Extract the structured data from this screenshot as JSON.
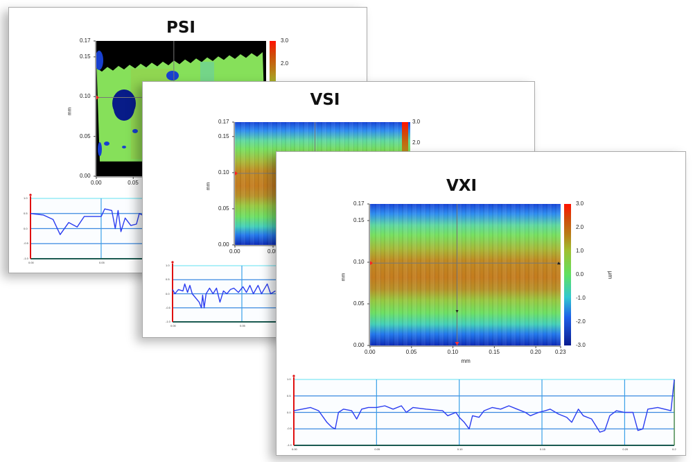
{
  "chart_data": [
    {
      "type": "heatmap",
      "title": "PSI",
      "heatmap": {
        "ylabel": "mm",
        "y_ticks": [
          "0.00",
          "0.05",
          "0.10",
          "0.15",
          "0.17"
        ],
        "x_ticks": [
          "0.00",
          "0.05"
        ],
        "ylim": [
          0,
          0.17
        ],
        "xlim": [
          0,
          0.23
        ],
        "colorbar_ticks": [
          "3.0",
          "2.0"
        ],
        "colorbar_range": [
          -3,
          3
        ]
      },
      "profile": {
        "type": "line",
        "y_ticks": [
          "1.0",
          "0.5",
          "0.0",
          "-0.5",
          "-1.0"
        ],
        "x_ticks": [
          "0.00",
          "0.05"
        ],
        "ylim": [
          -1,
          1
        ],
        "xlim": [
          0,
          0.23
        ],
        "x": [
          0,
          0.009,
          0.016,
          0.021,
          0.027,
          0.033,
          0.038,
          0.05,
          0.0525,
          0.0575,
          0.06,
          0.062,
          0.064,
          0.067,
          0.071,
          0.075,
          0.077,
          0.079
        ],
        "y": [
          0.5,
          0.45,
          0.3,
          -0.2,
          0.2,
          0.05,
          0.4,
          0.4,
          0.65,
          0.6,
          0.0,
          0.6,
          -0.1,
          0.35,
          0.1,
          0.15,
          0.5,
          0.45
        ],
        "color": "#2a3cf0"
      }
    },
    {
      "type": "heatmap",
      "title": "VSI",
      "heatmap": {
        "ylabel": "mm",
        "y_ticks": [
          "0.00",
          "0.05",
          "0.10",
          "0.15",
          "0.17"
        ],
        "x_ticks": [
          "0.00",
          "0.05"
        ],
        "ylim": [
          0,
          0.17
        ],
        "xlim": [
          0,
          0.23
        ],
        "colorbar_ticks": [
          "3.0",
          "2.0"
        ],
        "colorbar_range": [
          -3,
          3
        ]
      },
      "profile": {
        "type": "line",
        "y_ticks": [
          "1.0",
          "0.5",
          "0.0",
          "-0.5",
          "-1.0"
        ],
        "x_ticks": [
          "0.00",
          "0.05"
        ],
        "ylim": [
          -1,
          1
        ],
        "xlim": [
          0,
          0.23
        ],
        "x": [
          0,
          0.0017,
          0.0042,
          0.0075,
          0.0088,
          0.0108,
          0.0125,
          0.0142,
          0.0192,
          0.0208,
          0.0217,
          0.0228,
          0.0242,
          0.0267,
          0.0292,
          0.0317,
          0.0342,
          0.0367,
          0.0392,
          0.0417,
          0.0442,
          0.0475,
          0.0508,
          0.0533,
          0.0558,
          0.0583,
          0.0617,
          0.0642,
          0.0683,
          0.0708,
          0.0742
        ],
        "y": [
          0.15,
          0.0,
          0.15,
          0.1,
          0.35,
          0.05,
          0.3,
          0.0,
          -0.3,
          -0.5,
          -0.05,
          -0.5,
          0.0,
          0.2,
          0.0,
          0.2,
          -0.3,
          0.1,
          0.0,
          0.15,
          0.2,
          0.05,
          0.25,
          0.05,
          0.3,
          0.0,
          0.3,
          0.0,
          0.35,
          0.0,
          0.1
        ],
        "color": "#2a3cf0"
      }
    },
    {
      "type": "heatmap",
      "title": "VXI",
      "heatmap": {
        "xlabel": "mm",
        "ylabel": "mm",
        "y_ticks": [
          "0.00",
          "0.05",
          "0.10",
          "0.15",
          "0.17"
        ],
        "x_ticks": [
          "0.00",
          "0.05",
          "0.10",
          "0.15",
          "0.20",
          "0.23"
        ],
        "ylim": [
          0,
          0.17
        ],
        "xlim": [
          0,
          0.23
        ],
        "colorbar_label": "µm",
        "colorbar_ticks": [
          "3.0",
          "2.0",
          "1.0",
          "0.0",
          "-1.0",
          "-2.0",
          "-3.0"
        ],
        "colorbar_range": [
          -3,
          3
        ]
      },
      "profile": {
        "type": "line",
        "y_ticks": [
          "1.0",
          "0.5",
          "0.0",
          "-0.5",
          "-1.0"
        ],
        "x_ticks": [
          "0.00",
          "0.05",
          "0.10",
          "0.15",
          "0.20",
          "0.2"
        ],
        "ylim": [
          -1,
          1
        ],
        "xlim": [
          0,
          0.23
        ],
        "x": [
          0,
          0.005,
          0.01,
          0.015,
          0.02,
          0.023,
          0.025,
          0.027,
          0.03,
          0.035,
          0.038,
          0.041,
          0.045,
          0.05,
          0.055,
          0.06,
          0.065,
          0.068,
          0.072,
          0.08,
          0.09,
          0.093,
          0.098,
          0.1,
          0.103,
          0.106,
          0.108,
          0.112,
          0.115,
          0.12,
          0.125,
          0.13,
          0.135,
          0.14,
          0.143,
          0.148,
          0.152,
          0.155,
          0.16,
          0.165,
          0.168,
          0.172,
          0.175,
          0.18,
          0.185,
          0.188,
          0.191,
          0.195,
          0.2,
          0.205,
          0.208,
          0.211,
          0.214,
          0.22,
          0.228,
          0.23
        ],
        "y": [
          0.05,
          0.1,
          0.15,
          0.05,
          -0.3,
          -0.45,
          -0.5,
          0.0,
          0.1,
          0.05,
          -0.2,
          0.1,
          0.15,
          0.15,
          0.2,
          0.1,
          0.2,
          0.0,
          0.15,
          0.1,
          0.05,
          -0.1,
          0.0,
          -0.15,
          -0.3,
          -0.5,
          -0.1,
          -0.15,
          0.05,
          0.15,
          0.1,
          0.2,
          0.1,
          0.0,
          -0.1,
          0.0,
          0.05,
          0.1,
          -0.05,
          -0.15,
          -0.3,
          0.1,
          -0.1,
          -0.2,
          -0.6,
          -0.55,
          -0.1,
          0.05,
          0.0,
          0.0,
          -0.55,
          -0.5,
          0.1,
          0.15,
          0.05,
          1.0
        ],
        "color": "#2a3cf0"
      }
    }
  ]
}
